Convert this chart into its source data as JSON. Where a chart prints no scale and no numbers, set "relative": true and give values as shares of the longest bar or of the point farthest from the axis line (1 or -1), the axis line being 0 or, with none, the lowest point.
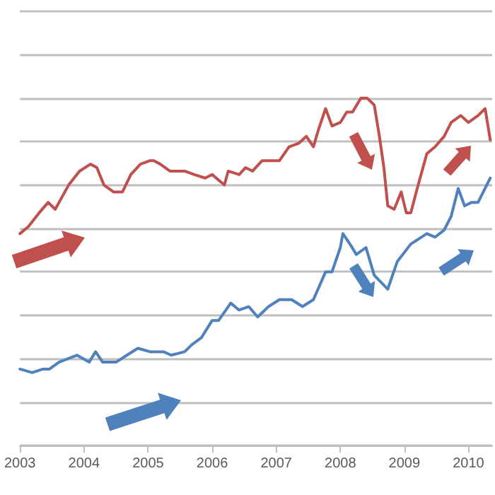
{
  "chart_data": {
    "type": "line",
    "relative": true,
    "grid": "y",
    "marker": "none",
    "line_style": "solid",
    "xlim": [
      2003,
      2010.37
    ],
    "xticks": [
      2003,
      2004,
      2005,
      2006,
      2007,
      2008,
      2009,
      2010
    ],
    "series": [
      {
        "color": "#c0504d",
        "x": [
          2003.0,
          2003.13,
          2003.3,
          2003.44,
          2003.55,
          2003.76,
          2003.93,
          2004.1,
          2004.2,
          2004.31,
          2004.46,
          2004.6,
          2004.73,
          2004.88,
          2005.03,
          2005.09,
          2005.19,
          2005.34,
          2005.57,
          2005.72,
          2005.89,
          2006.0,
          2006.19,
          2006.25,
          2006.42,
          2006.52,
          2006.63,
          2006.78,
          2006.92,
          2007.05,
          2007.2,
          2007.35,
          2007.47,
          2007.58,
          2007.66,
          2007.77,
          2007.87,
          2008.0,
          2008.1,
          2008.19,
          2008.32,
          2008.42,
          2008.53,
          2008.61,
          2008.68,
          2008.74,
          2008.84,
          2008.95,
          2009.03,
          2009.1,
          2009.2,
          2009.35,
          2009.48,
          2009.62,
          2009.73,
          2009.88,
          2010.0,
          2010.15,
          2010.26,
          2010.34
        ],
        "values": [
          0.61,
          0.63,
          0.67,
          0.7,
          0.68,
          0.75,
          0.79,
          0.81,
          0.8,
          0.75,
          0.73,
          0.73,
          0.78,
          0.81,
          0.82,
          0.82,
          0.81,
          0.79,
          0.79,
          0.78,
          0.77,
          0.78,
          0.75,
          0.79,
          0.78,
          0.8,
          0.79,
          0.82,
          0.82,
          0.82,
          0.86,
          0.87,
          0.89,
          0.86,
          0.91,
          0.97,
          0.92,
          0.93,
          0.96,
          0.96,
          1.0,
          1.0,
          0.98,
          0.89,
          0.8,
          0.69,
          0.68,
          0.73,
          0.67,
          0.67,
          0.74,
          0.84,
          0.86,
          0.89,
          0.93,
          0.95,
          0.93,
          0.95,
          0.97,
          0.88
        ]
      },
      {
        "color": "#4f81bd",
        "x": [
          2003.0,
          2003.19,
          2003.36,
          2003.46,
          2003.61,
          2003.89,
          2004.08,
          2004.18,
          2004.29,
          2004.5,
          2004.67,
          2004.84,
          2005.03,
          2005.24,
          2005.36,
          2005.57,
          2005.68,
          2005.83,
          2006.0,
          2006.1,
          2006.29,
          2006.42,
          2006.57,
          2006.71,
          2006.88,
          2007.05,
          2007.24,
          2007.41,
          2007.58,
          2007.77,
          2007.87,
          2008.0,
          2008.04,
          2008.15,
          2008.25,
          2008.4,
          2008.53,
          2008.74,
          2008.89,
          2009.1,
          2009.35,
          2009.48,
          2009.62,
          2009.73,
          2009.84,
          2009.94,
          2010.05,
          2010.15,
          2010.34
        ],
        "values": [
          0.22,
          0.21,
          0.22,
          0.22,
          0.24,
          0.26,
          0.24,
          0.27,
          0.24,
          0.24,
          0.26,
          0.28,
          0.27,
          0.27,
          0.26,
          0.27,
          0.29,
          0.31,
          0.36,
          0.36,
          0.41,
          0.39,
          0.4,
          0.37,
          0.4,
          0.42,
          0.42,
          0.4,
          0.42,
          0.5,
          0.5,
          0.57,
          0.61,
          0.58,
          0.55,
          0.57,
          0.49,
          0.45,
          0.53,
          0.58,
          0.61,
          0.6,
          0.62,
          0.66,
          0.74,
          0.69,
          0.7,
          0.7,
          0.77
        ]
      }
    ]
  }
}
